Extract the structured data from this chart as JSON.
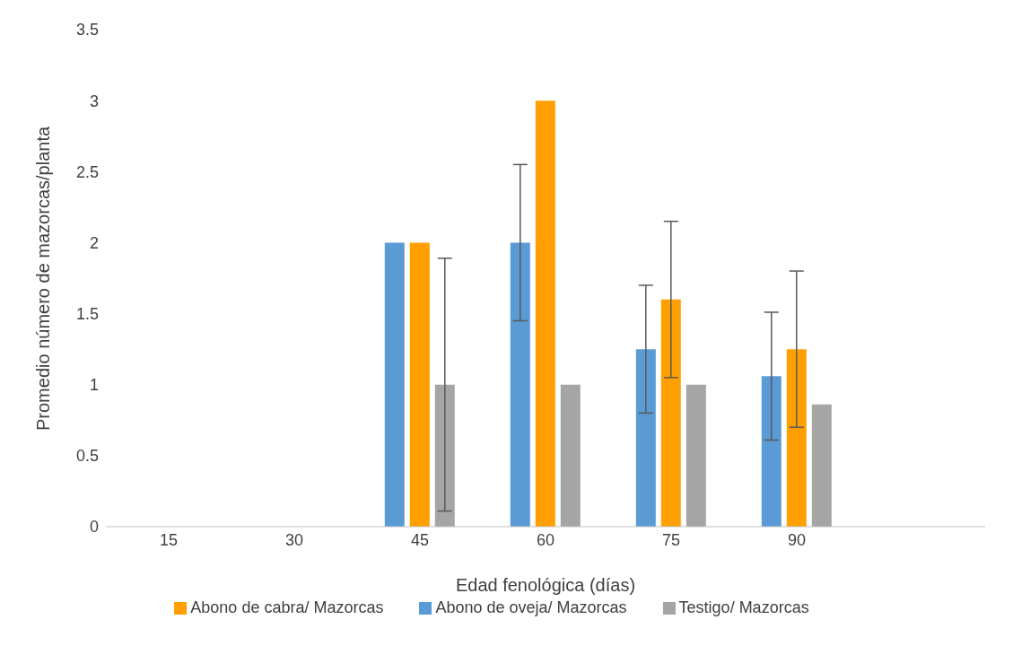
{
  "chart_data": {
    "type": "bar",
    "xlabel": "Edad fenológica (días)",
    "ylabel": "Promedio número de mazorcas/planta",
    "categories": [
      "15",
      "30",
      "45",
      "60",
      "75",
      "90",
      null
    ],
    "series": [
      {
        "name": "Abono de oveja/ Mazorcas",
        "color": "#5b9bd5",
        "values": [
          0,
          0,
          2,
          2,
          1.25,
          1.06,
          null
        ],
        "errors": [
          0,
          0,
          0,
          0.55,
          0.45,
          0.45,
          null
        ]
      },
      {
        "name": "Abono de cabra/ Mazorcas",
        "color": "#ff9f00",
        "values": [
          0,
          0,
          2,
          3,
          1.6,
          1.25,
          null
        ],
        "errors": [
          0,
          0,
          0,
          0,
          0.55,
          0.55,
          null
        ]
      },
      {
        "name": "Testigo/ Mazorcas",
        "color": "#a5a5a5",
        "values": [
          0,
          0,
          1,
          1,
          1,
          0.86,
          null
        ],
        "errors": [
          0,
          0,
          0.89,
          0,
          0,
          0,
          null
        ]
      }
    ],
    "ylim": [
      0,
      3.5
    ],
    "yticks": [
      0,
      0.5,
      1,
      1.5,
      2,
      2.5,
      3,
      3.5
    ],
    "grid": false,
    "legend": "bottom"
  }
}
